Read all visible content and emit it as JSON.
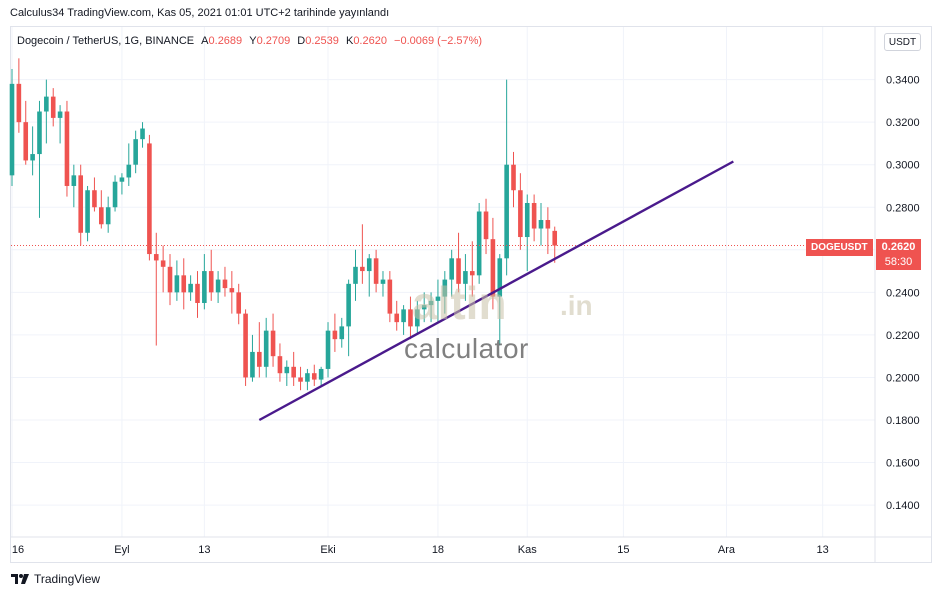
{
  "header": {
    "publish_line": "Calculus34 TradingView.com, Kas 05, 2021 01:01 UTC+2 tarihinde yayınlandı"
  },
  "legend": {
    "symbol": "Dogecoin / TetherUS, 1G, BINANCE",
    "open_label": "A",
    "open": "0.2689",
    "high_label": "Y",
    "high": "0.2709",
    "low_label": "D",
    "low": "0.2539",
    "close_label": "K",
    "close": "0.2620",
    "change": "−0.0069 (−2.57%)"
  },
  "currency_button": "USDT",
  "price_tag": {
    "ticker": "DOGEUSDT",
    "price": "0.2620",
    "countdown": "58:30"
  },
  "watermark": {
    "brand": "altin",
    "suffix": ".in",
    "sub": "calculator"
  },
  "footer": {
    "logo_text": "TradingView"
  },
  "colors": {
    "up": "#26a69a",
    "down": "#ef5350",
    "trendline": "#4a1a8c",
    "grid": "#f0f3fa"
  },
  "chart_data": {
    "type": "candlestick",
    "title": "Dogecoin / TetherUS, 1G, BINANCE",
    "ylim": [
      0.125,
      0.36
    ],
    "y_ticks": [
      "0.3400",
      "0.3200",
      "0.3000",
      "0.2800",
      "0.2600",
      "0.2400",
      "0.2200",
      "0.2000",
      "0.1800",
      "0.1600",
      "0.1400"
    ],
    "x_ticks": [
      "16",
      "Eyl",
      "13",
      "Eki",
      "18",
      "Kas",
      "15",
      "Ara",
      "13"
    ],
    "x_tick_days": [
      0,
      16,
      28,
      46,
      62,
      75,
      89,
      104,
      118
    ],
    "current_price": 0.262,
    "trendline": {
      "from": {
        "day": 36,
        "price": 0.18
      },
      "to": {
        "day": 105,
        "price": 0.3015
      }
    },
    "candles": [
      {
        "d": 0,
        "o": 0.295,
        "h": 0.345,
        "l": 0.29,
        "c": 0.338
      },
      {
        "d": 1,
        "o": 0.338,
        "h": 0.35,
        "l": 0.315,
        "c": 0.32
      },
      {
        "d": 2,
        "o": 0.32,
        "h": 0.33,
        "l": 0.3,
        "c": 0.302
      },
      {
        "d": 3,
        "o": 0.302,
        "h": 0.318,
        "l": 0.295,
        "c": 0.305
      },
      {
        "d": 4,
        "o": 0.305,
        "h": 0.33,
        "l": 0.275,
        "c": 0.325
      },
      {
        "d": 5,
        "o": 0.325,
        "h": 0.34,
        "l": 0.31,
        "c": 0.332
      },
      {
        "d": 6,
        "o": 0.332,
        "h": 0.336,
        "l": 0.318,
        "c": 0.322
      },
      {
        "d": 7,
        "o": 0.322,
        "h": 0.328,
        "l": 0.31,
        "c": 0.325
      },
      {
        "d": 8,
        "o": 0.325,
        "h": 0.33,
        "l": 0.285,
        "c": 0.29
      },
      {
        "d": 9,
        "o": 0.29,
        "h": 0.3,
        "l": 0.28,
        "c": 0.295
      },
      {
        "d": 10,
        "o": 0.295,
        "h": 0.3,
        "l": 0.262,
        "c": 0.268
      },
      {
        "d": 11,
        "o": 0.268,
        "h": 0.29,
        "l": 0.264,
        "c": 0.288
      },
      {
        "d": 12,
        "o": 0.288,
        "h": 0.294,
        "l": 0.278,
        "c": 0.28
      },
      {
        "d": 13,
        "o": 0.28,
        "h": 0.288,
        "l": 0.27,
        "c": 0.272
      },
      {
        "d": 14,
        "o": 0.272,
        "h": 0.285,
        "l": 0.268,
        "c": 0.28
      },
      {
        "d": 15,
        "o": 0.28,
        "h": 0.295,
        "l": 0.278,
        "c": 0.292
      },
      {
        "d": 16,
        "o": 0.292,
        "h": 0.296,
        "l": 0.286,
        "c": 0.294
      },
      {
        "d": 17,
        "o": 0.294,
        "h": 0.31,
        "l": 0.29,
        "c": 0.3
      },
      {
        "d": 18,
        "o": 0.3,
        "h": 0.316,
        "l": 0.296,
        "c": 0.312
      },
      {
        "d": 19,
        "o": 0.312,
        "h": 0.32,
        "l": 0.308,
        "c": 0.317
      },
      {
        "d": 20,
        "o": 0.31,
        "h": 0.314,
        "l": 0.255,
        "c": 0.258
      },
      {
        "d": 21,
        "o": 0.258,
        "h": 0.268,
        "l": 0.215,
        "c": 0.255
      },
      {
        "d": 22,
        "o": 0.255,
        "h": 0.262,
        "l": 0.24,
        "c": 0.252
      },
      {
        "d": 23,
        "o": 0.252,
        "h": 0.258,
        "l": 0.234,
        "c": 0.24
      },
      {
        "d": 24,
        "o": 0.24,
        "h": 0.255,
        "l": 0.236,
        "c": 0.248
      },
      {
        "d": 25,
        "o": 0.248,
        "h": 0.256,
        "l": 0.232,
        "c": 0.24
      },
      {
        "d": 26,
        "o": 0.24,
        "h": 0.248,
        "l": 0.236,
        "c": 0.244
      },
      {
        "d": 27,
        "o": 0.244,
        "h": 0.25,
        "l": 0.228,
        "c": 0.235
      },
      {
        "d": 28,
        "o": 0.235,
        "h": 0.258,
        "l": 0.232,
        "c": 0.25
      },
      {
        "d": 29,
        "o": 0.25,
        "h": 0.26,
        "l": 0.236,
        "c": 0.24
      },
      {
        "d": 30,
        "o": 0.24,
        "h": 0.25,
        "l": 0.235,
        "c": 0.246
      },
      {
        "d": 31,
        "o": 0.246,
        "h": 0.252,
        "l": 0.238,
        "c": 0.242
      },
      {
        "d": 32,
        "o": 0.242,
        "h": 0.25,
        "l": 0.23,
        "c": 0.24
      },
      {
        "d": 33,
        "o": 0.24,
        "h": 0.244,
        "l": 0.225,
        "c": 0.23
      },
      {
        "d": 34,
        "o": 0.23,
        "h": 0.232,
        "l": 0.196,
        "c": 0.2
      },
      {
        "d": 35,
        "o": 0.2,
        "h": 0.22,
        "l": 0.198,
        "c": 0.212
      },
      {
        "d": 36,
        "o": 0.212,
        "h": 0.226,
        "l": 0.2,
        "c": 0.205
      },
      {
        "d": 37,
        "o": 0.205,
        "h": 0.228,
        "l": 0.2,
        "c": 0.222
      },
      {
        "d": 38,
        "o": 0.222,
        "h": 0.23,
        "l": 0.205,
        "c": 0.21
      },
      {
        "d": 39,
        "o": 0.21,
        "h": 0.216,
        "l": 0.198,
        "c": 0.202
      },
      {
        "d": 40,
        "o": 0.202,
        "h": 0.208,
        "l": 0.196,
        "c": 0.205
      },
      {
        "d": 41,
        "o": 0.205,
        "h": 0.212,
        "l": 0.196,
        "c": 0.2
      },
      {
        "d": 42,
        "o": 0.2,
        "h": 0.205,
        "l": 0.194,
        "c": 0.198
      },
      {
        "d": 43,
        "o": 0.198,
        "h": 0.204,
        "l": 0.194,
        "c": 0.202
      },
      {
        "d": 44,
        "o": 0.202,
        "h": 0.206,
        "l": 0.196,
        "c": 0.199
      },
      {
        "d": 45,
        "o": 0.199,
        "h": 0.205,
        "l": 0.196,
        "c": 0.204
      },
      {
        "d": 46,
        "o": 0.204,
        "h": 0.226,
        "l": 0.2,
        "c": 0.222
      },
      {
        "d": 47,
        "o": 0.222,
        "h": 0.23,
        "l": 0.212,
        "c": 0.218
      },
      {
        "d": 48,
        "o": 0.218,
        "h": 0.228,
        "l": 0.214,
        "c": 0.224
      },
      {
        "d": 49,
        "o": 0.224,
        "h": 0.246,
        "l": 0.21,
        "c": 0.244
      },
      {
        "d": 50,
        "o": 0.244,
        "h": 0.26,
        "l": 0.236,
        "c": 0.252
      },
      {
        "d": 51,
        "o": 0.252,
        "h": 0.272,
        "l": 0.244,
        "c": 0.25
      },
      {
        "d": 52,
        "o": 0.25,
        "h": 0.258,
        "l": 0.238,
        "c": 0.256
      },
      {
        "d": 53,
        "o": 0.256,
        "h": 0.26,
        "l": 0.24,
        "c": 0.244
      },
      {
        "d": 54,
        "o": 0.244,
        "h": 0.25,
        "l": 0.238,
        "c": 0.246
      },
      {
        "d": 55,
        "o": 0.246,
        "h": 0.25,
        "l": 0.226,
        "c": 0.23
      },
      {
        "d": 56,
        "o": 0.23,
        "h": 0.236,
        "l": 0.222,
        "c": 0.226
      },
      {
        "d": 57,
        "o": 0.226,
        "h": 0.234,
        "l": 0.22,
        "c": 0.232
      },
      {
        "d": 58,
        "o": 0.232,
        "h": 0.238,
        "l": 0.218,
        "c": 0.224
      },
      {
        "d": 59,
        "o": 0.224,
        "h": 0.236,
        "l": 0.22,
        "c": 0.232
      },
      {
        "d": 60,
        "o": 0.232,
        "h": 0.24,
        "l": 0.226,
        "c": 0.234
      },
      {
        "d": 61,
        "o": 0.234,
        "h": 0.24,
        "l": 0.226,
        "c": 0.236
      },
      {
        "d": 62,
        "o": 0.236,
        "h": 0.246,
        "l": 0.226,
        "c": 0.238
      },
      {
        "d": 63,
        "o": 0.238,
        "h": 0.25,
        "l": 0.23,
        "c": 0.246
      },
      {
        "d": 64,
        "o": 0.246,
        "h": 0.26,
        "l": 0.238,
        "c": 0.256
      },
      {
        "d": 65,
        "o": 0.256,
        "h": 0.268,
        "l": 0.24,
        "c": 0.244
      },
      {
        "d": 66,
        "o": 0.244,
        "h": 0.258,
        "l": 0.236,
        "c": 0.25
      },
      {
        "d": 67,
        "o": 0.25,
        "h": 0.264,
        "l": 0.238,
        "c": 0.248
      },
      {
        "d": 68,
        "o": 0.248,
        "h": 0.282,
        "l": 0.244,
        "c": 0.278
      },
      {
        "d": 69,
        "o": 0.278,
        "h": 0.284,
        "l": 0.258,
        "c": 0.265
      },
      {
        "d": 70,
        "o": 0.265,
        "h": 0.275,
        "l": 0.232,
        "c": 0.238
      },
      {
        "d": 71,
        "o": 0.238,
        "h": 0.258,
        "l": 0.215,
        "c": 0.256
      },
      {
        "d": 72,
        "o": 0.256,
        "h": 0.34,
        "l": 0.248,
        "c": 0.3
      },
      {
        "d": 73,
        "o": 0.3,
        "h": 0.306,
        "l": 0.28,
        "c": 0.288
      },
      {
        "d": 74,
        "o": 0.288,
        "h": 0.296,
        "l": 0.26,
        "c": 0.266
      },
      {
        "d": 75,
        "o": 0.266,
        "h": 0.286,
        "l": 0.25,
        "c": 0.282
      },
      {
        "d": 76,
        "o": 0.282,
        "h": 0.286,
        "l": 0.264,
        "c": 0.27
      },
      {
        "d": 77,
        "o": 0.27,
        "h": 0.282,
        "l": 0.262,
        "c": 0.274
      },
      {
        "d": 78,
        "o": 0.274,
        "h": 0.28,
        "l": 0.258,
        "c": 0.27
      },
      {
        "d": 79,
        "o": 0.2689,
        "h": 0.2709,
        "l": 0.2539,
        "c": 0.262
      }
    ]
  }
}
